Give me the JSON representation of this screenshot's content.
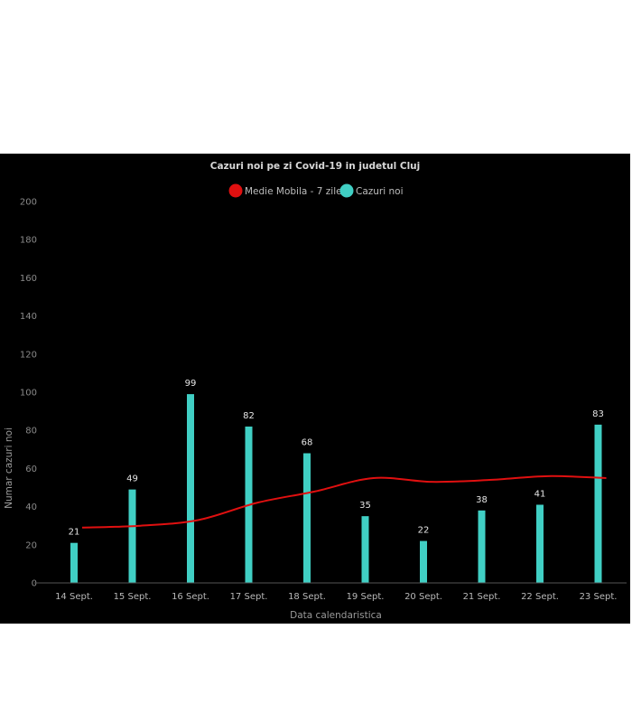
{
  "chart_data": {
    "type": "bar",
    "title": "Cazuri noi pe zi Covid-19 in judetul Cluj",
    "xlabel": "Data calendaristica",
    "ylabel": "Numar cazuri noi",
    "ylim": [
      0,
      200
    ],
    "yticks": [
      0,
      20,
      40,
      60,
      80,
      100,
      120,
      140,
      160,
      180,
      200
    ],
    "categories": [
      "14 Sept.",
      "15 Sept.",
      "16 Sept.",
      "17 Sept.",
      "18 Sept.",
      "19 Sept.",
      "20 Sept.",
      "21 Sept.",
      "22 Sept.",
      "23 Sept."
    ],
    "series": [
      {
        "name": "Cazuri noi",
        "type": "bar",
        "color": "#40cfc4",
        "values": [
          21,
          49,
          99,
          82,
          68,
          35,
          22,
          38,
          41,
          83
        ]
      },
      {
        "name": "Medie Mobila - 7 zile",
        "type": "line",
        "color": "#e01010",
        "values": [
          29,
          30,
          33,
          42,
          48,
          55,
          53,
          54,
          56,
          55
        ]
      }
    ],
    "legend_position": "top-center",
    "grid": false,
    "background": "#000000"
  }
}
